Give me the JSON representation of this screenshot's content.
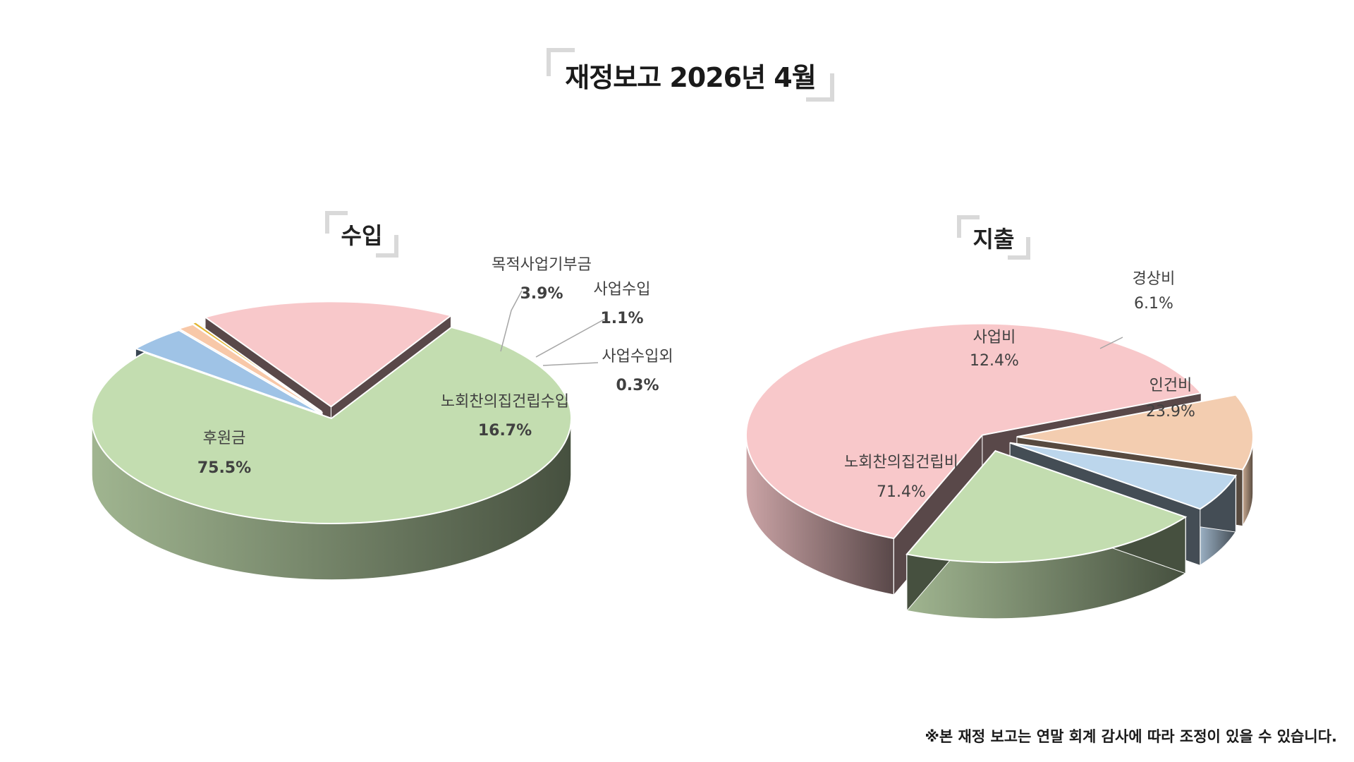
{
  "title": "재정보고 2026년 4월",
  "footnote": "※본 재정 보고는 연말 회계 감사에 따라 조정이 있을 수 있습니다.",
  "chart_data": [
    {
      "type": "pie",
      "title": "수입",
      "slices": [
        {
          "name": "후원금",
          "value": 75.5,
          "label": "75.5%",
          "color": "#c3ddb0"
        },
        {
          "name": "목적사업기부금",
          "value": 3.9,
          "label": "3.9%",
          "color": "#9fc3e6"
        },
        {
          "name": "사업수입",
          "value": 1.1,
          "label": "1.1%",
          "color": "#f8c8a8"
        },
        {
          "name": "사업수입외",
          "value": 0.3,
          "label": "0.3%",
          "color": "#e2b530"
        },
        {
          "name": "노회찬의집건립수입",
          "value": 16.7,
          "label": "16.7%",
          "color": "#f8c8ca"
        }
      ]
    },
    {
      "type": "pie",
      "title": "지출",
      "slices": [
        {
          "name": "노회찬의집건립비",
          "value": 71.4,
          "label": "71.4%",
          "color": "#f8c8ca"
        },
        {
          "name": "사업비",
          "value": 12.4,
          "label": "12.4%",
          "color": "#f3cdb0"
        },
        {
          "name": "경상비",
          "value": 6.1,
          "label": "6.1%",
          "color": "#bcd6ec"
        },
        {
          "name": "인건비",
          "value": 23.9,
          "label": "23.9%",
          "color": "#c3ddb0"
        }
      ]
    }
  ]
}
